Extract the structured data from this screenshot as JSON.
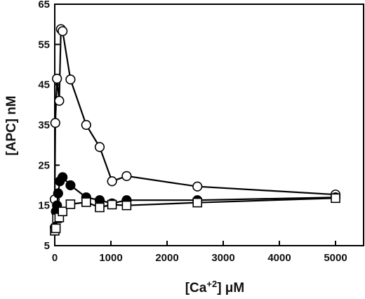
{
  "chart_data": {
    "type": "line",
    "title": "",
    "xlabel": "[Ca+2] μM",
    "xlabel_parts": {
      "base": "[Ca",
      "sup": "+2",
      "close": "]",
      "unit": " μM"
    },
    "ylabel": "[APC] nM",
    "xlim": [
      0,
      5500
    ],
    "ylim": [
      5,
      65
    ],
    "x_ticks": [
      0,
      1000,
      2000,
      3000,
      4000,
      5000
    ],
    "y_ticks": [
      5,
      15,
      25,
      35,
      45,
      55,
      65
    ],
    "grid": false,
    "legend": "none",
    "series": [
      {
        "marker": "open-circle",
        "points": [
          [
            0,
            16.5
          ],
          [
            10,
            35.5
          ],
          [
            40,
            46.5
          ],
          [
            80,
            41
          ],
          [
            110,
            58.8
          ],
          [
            140,
            58.3
          ],
          [
            280,
            46.3
          ],
          [
            560,
            35
          ],
          [
            800,
            29.5
          ],
          [
            1020,
            21
          ],
          [
            1280,
            22.3
          ],
          [
            2540,
            19.7
          ],
          [
            5000,
            17.7
          ]
        ]
      },
      {
        "marker": "filled-circle",
        "points": [
          [
            0,
            9.5
          ],
          [
            20,
            13.5
          ],
          [
            40,
            15
          ],
          [
            60,
            18
          ],
          [
            90,
            21
          ],
          [
            140,
            22
          ],
          [
            280,
            20
          ],
          [
            560,
            17
          ],
          [
            800,
            16.3
          ],
          [
            1020,
            15.5
          ],
          [
            1280,
            16.3
          ],
          [
            2540,
            16.3
          ],
          [
            5000,
            17
          ]
        ]
      },
      {
        "marker": "open-square",
        "points": [
          [
            0,
            8.7
          ],
          [
            20,
            9.3
          ],
          [
            40,
            11.8
          ],
          [
            80,
            12
          ],
          [
            140,
            13.5
          ],
          [
            280,
            15.3
          ],
          [
            560,
            15.8
          ],
          [
            800,
            14.5
          ],
          [
            1020,
            15.2
          ],
          [
            1280,
            15
          ],
          [
            2540,
            15.7
          ],
          [
            5000,
            16.8
          ]
        ]
      }
    ]
  }
}
